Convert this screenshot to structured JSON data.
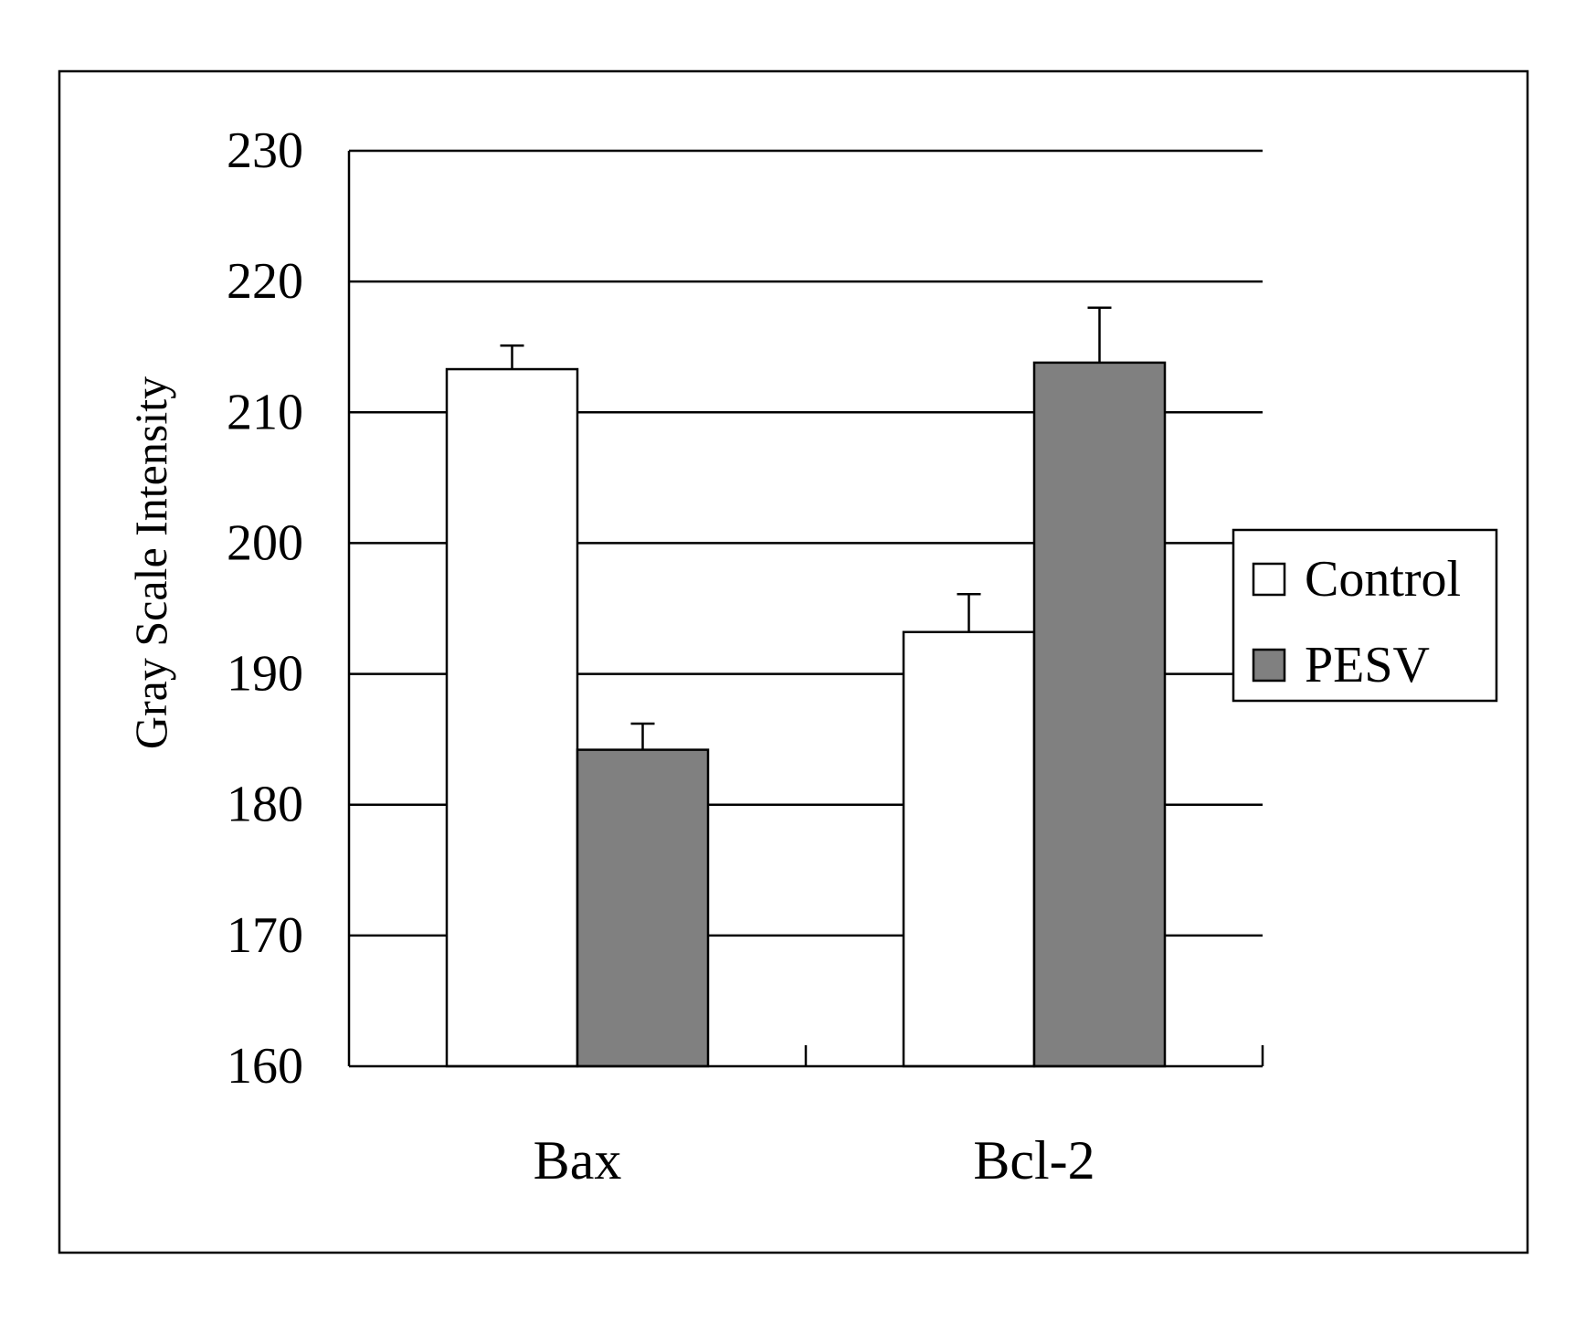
{
  "chart_data": {
    "type": "bar",
    "title": "",
    "xlabel": "",
    "ylabel": "Gray Scale Intensity",
    "ylim": [
      160,
      230
    ],
    "yticks": [
      160,
      170,
      180,
      190,
      200,
      210,
      220,
      230
    ],
    "categories": [
      "Bax",
      "Bcl-2"
    ],
    "grid": true,
    "legend_position": "right",
    "series": [
      {
        "name": "Control",
        "values": [
          213.3,
          193.2
        ],
        "errors": [
          1.8,
          2.9
        ],
        "color": "#ffffff"
      },
      {
        "name": "PESV",
        "values": [
          184.2,
          213.8
        ],
        "errors": [
          2.0,
          4.2
        ],
        "color": "#808080"
      }
    ]
  }
}
